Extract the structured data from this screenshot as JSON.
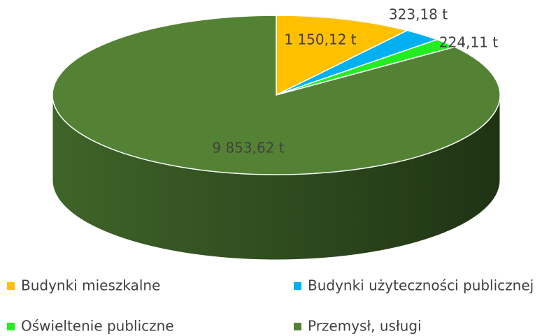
{
  "chart_data": {
    "type": "pie",
    "categories": [
      "Budynki mieszkalne",
      "Budynki użyteczności publicznej",
      "Oświeltenie publiczne",
      "Przemysł, usługi"
    ],
    "values": [
      1150.12,
      323.18,
      224.11,
      9853.62
    ],
    "value_labels": [
      "1 150,12 t",
      "323,18 t",
      "224,11 t",
      "9 853,62 t"
    ],
    "colors": [
      "#ffc000",
      "#00b0f0",
      "#22ee22",
      "#548235"
    ],
    "legend": "bottom"
  }
}
